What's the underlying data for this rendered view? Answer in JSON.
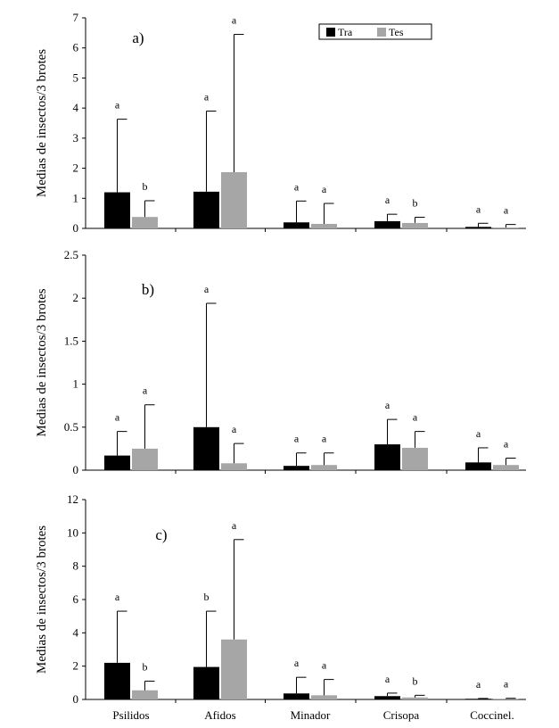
{
  "colors": {
    "Tra": "#000000",
    "Tes": "#a6a6a6",
    "axis": "#000000",
    "error_bar": "#000000"
  },
  "chart_data": [
    {
      "type": "bar",
      "panel_label": "a)",
      "categories": [
        "Psilidos",
        "Afidos",
        "Minador",
        "Crisopa",
        "Coccinel."
      ],
      "ylabel": "Medias de insectos/3 brotes",
      "xlabel": "",
      "ylim": [
        0,
        7
      ],
      "yticks": [
        "0",
        "1",
        "2",
        "3",
        "4",
        "5",
        "6",
        "7"
      ],
      "legend": {
        "position": "top-right",
        "entries": [
          "Tra",
          "Tes"
        ]
      },
      "series": [
        {
          "name": "Tra",
          "values": [
            1.2,
            1.22,
            0.2,
            0.24,
            0.05
          ],
          "error_upper": [
            3.63,
            3.9,
            0.91,
            0.47,
            0.17
          ],
          "letters": [
            "a",
            "a",
            "a",
            "a",
            "a"
          ]
        },
        {
          "name": "Tes",
          "values": [
            0.38,
            1.87,
            0.15,
            0.18,
            0.03
          ],
          "error_upper": [
            0.92,
            6.45,
            0.83,
            0.37,
            0.13
          ],
          "letters": [
            "b",
            "a",
            "a",
            "b",
            "a"
          ]
        }
      ]
    },
    {
      "type": "bar",
      "panel_label": "b)",
      "categories": [
        "Psilidos",
        "Afidos",
        "Minador",
        "Crisopa",
        "Coccinel."
      ],
      "ylabel": "Medias de insectos/3 brotes",
      "xlabel": "",
      "ylim": [
        0,
        2.5
      ],
      "yticks": [
        "0",
        "0.5",
        "1",
        "1.5",
        "2",
        "2.5"
      ],
      "series": [
        {
          "name": "Tra",
          "values": [
            0.17,
            0.5,
            0.05,
            0.3,
            0.09
          ],
          "error_upper": [
            0.45,
            1.94,
            0.2,
            0.59,
            0.26
          ],
          "letters": [
            "a",
            "a",
            "a",
            "a",
            "a"
          ]
        },
        {
          "name": "Tes",
          "values": [
            0.25,
            0.08,
            0.06,
            0.26,
            0.06
          ],
          "error_upper": [
            0.76,
            0.31,
            0.2,
            0.45,
            0.14
          ],
          "letters": [
            "a",
            "a",
            "a",
            "a",
            "a"
          ]
        }
      ]
    },
    {
      "type": "bar",
      "panel_label": "c)",
      "categories": [
        "Psilidos",
        "Afidos",
        "Minador",
        "Crisopa",
        "Coccinel."
      ],
      "ylabel": "Medias de insectos/3 brotes",
      "xlabel": "",
      "ylim": [
        0,
        12
      ],
      "yticks": [
        "0",
        "2",
        "4",
        "6",
        "8",
        "10",
        "12"
      ],
      "series": [
        {
          "name": "Tra",
          "values": [
            2.2,
            1.95,
            0.36,
            0.2,
            0.04
          ],
          "error_upper": [
            5.3,
            5.3,
            1.33,
            0.38,
            0.06
          ],
          "letters": [
            "a",
            "b",
            "a",
            "a",
            "a"
          ]
        },
        {
          "name": "Tes",
          "values": [
            0.55,
            3.6,
            0.25,
            0.12,
            0.04
          ],
          "error_upper": [
            1.1,
            9.6,
            1.2,
            0.25,
            0.07
          ],
          "letters": [
            "b",
            "a",
            "a",
            "b",
            "a"
          ]
        }
      ]
    }
  ]
}
